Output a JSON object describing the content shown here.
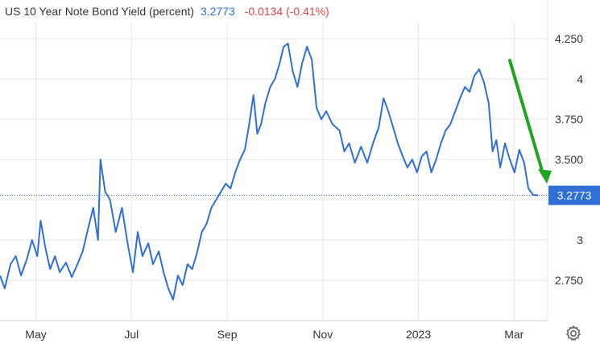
{
  "header": {
    "title": "US 10 Year Note Bond Yield (percent)",
    "value": "3.2773",
    "change": "-0.0134 (-0.41%)"
  },
  "colors": {
    "line": "#2f6fd6",
    "change_negative": "#e04545",
    "arrow": "#1fa51f",
    "grid": "#e6e6e6",
    "axis_text": "#333333"
  },
  "settings_icon": "gear-icon",
  "chart_data": {
    "type": "line",
    "title": "US 10 Year Note Bond Yield (percent)",
    "xlabel": "",
    "ylabel": "",
    "ylim": [
      2.5,
      4.35
    ],
    "x_ticks": [
      {
        "label": "May",
        "x": 0.75
      },
      {
        "label": "Jul",
        "x": 2.75
      },
      {
        "label": "Sep",
        "x": 4.75
      },
      {
        "label": "Nov",
        "x": 6.75
      },
      {
        "label": "2023",
        "x": 8.75
      },
      {
        "label": "Mar",
        "x": 10.75
      }
    ],
    "y_ticks": [
      {
        "label": "2.750",
        "value": 2.75
      },
      {
        "label": "3",
        "value": 3.0
      },
      {
        "label": "3.250",
        "value": 3.25
      },
      {
        "label": "3.500",
        "value": 3.5
      },
      {
        "label": "3.750",
        "value": 3.75
      },
      {
        "label": "4",
        "value": 4.0
      },
      {
        "label": "4.250",
        "value": 4.25
      }
    ],
    "last_value_label": "3.2773",
    "last_value": 3.2773,
    "series": [
      {
        "name": "",
        "points": [
          [
            0.0,
            2.78
          ],
          [
            0.1,
            2.7
          ],
          [
            0.22,
            2.85
          ],
          [
            0.33,
            2.9
          ],
          [
            0.44,
            2.78
          ],
          [
            0.56,
            2.88
          ],
          [
            0.67,
            3.0
          ],
          [
            0.78,
            2.9
          ],
          [
            0.85,
            3.12
          ],
          [
            0.95,
            2.95
          ],
          [
            1.05,
            2.82
          ],
          [
            1.15,
            2.9
          ],
          [
            1.25,
            2.8
          ],
          [
            1.38,
            2.86
          ],
          [
            1.5,
            2.77
          ],
          [
            1.62,
            2.85
          ],
          [
            1.73,
            2.93
          ],
          [
            1.85,
            3.08
          ],
          [
            1.95,
            3.2
          ],
          [
            2.05,
            3.0
          ],
          [
            2.1,
            3.5
          ],
          [
            2.2,
            3.3
          ],
          [
            2.3,
            3.25
          ],
          [
            2.42,
            3.05
          ],
          [
            2.55,
            3.2
          ],
          [
            2.68,
            2.96
          ],
          [
            2.78,
            2.8
          ],
          [
            2.88,
            3.05
          ],
          [
            2.98,
            2.9
          ],
          [
            3.1,
            2.98
          ],
          [
            3.2,
            2.85
          ],
          [
            3.32,
            2.93
          ],
          [
            3.42,
            2.8
          ],
          [
            3.52,
            2.7
          ],
          [
            3.62,
            2.63
          ],
          [
            3.72,
            2.78
          ],
          [
            3.82,
            2.72
          ],
          [
            3.92,
            2.85
          ],
          [
            4.02,
            2.82
          ],
          [
            4.12,
            2.92
          ],
          [
            4.22,
            3.05
          ],
          [
            4.32,
            3.1
          ],
          [
            4.42,
            3.2
          ],
          [
            4.52,
            3.25
          ],
          [
            4.62,
            3.3
          ],
          [
            4.72,
            3.35
          ],
          [
            4.82,
            3.32
          ],
          [
            4.92,
            3.42
          ],
          [
            5.02,
            3.5
          ],
          [
            5.12,
            3.56
          ],
          [
            5.2,
            3.7
          ],
          [
            5.3,
            3.9
          ],
          [
            5.38,
            3.66
          ],
          [
            5.46,
            3.72
          ],
          [
            5.55,
            3.85
          ],
          [
            5.65,
            3.95
          ],
          [
            5.75,
            4.0
          ],
          [
            5.85,
            4.1
          ],
          [
            5.93,
            4.2
          ],
          [
            6.02,
            4.22
          ],
          [
            6.12,
            4.05
          ],
          [
            6.22,
            3.95
          ],
          [
            6.32,
            4.1
          ],
          [
            6.42,
            4.2
          ],
          [
            6.52,
            4.12
          ],
          [
            6.62,
            3.82
          ],
          [
            6.72,
            3.75
          ],
          [
            6.82,
            3.8
          ],
          [
            6.95,
            3.72
          ],
          [
            7.1,
            3.68
          ],
          [
            7.2,
            3.55
          ],
          [
            7.3,
            3.6
          ],
          [
            7.42,
            3.48
          ],
          [
            7.55,
            3.58
          ],
          [
            7.68,
            3.48
          ],
          [
            7.8,
            3.6
          ],
          [
            7.92,
            3.7
          ],
          [
            8.02,
            3.88
          ],
          [
            8.12,
            3.8
          ],
          [
            8.22,
            3.7
          ],
          [
            8.32,
            3.6
          ],
          [
            8.42,
            3.52
          ],
          [
            8.52,
            3.45
          ],
          [
            8.62,
            3.5
          ],
          [
            8.72,
            3.42
          ],
          [
            8.82,
            3.52
          ],
          [
            8.92,
            3.55
          ],
          [
            9.02,
            3.42
          ],
          [
            9.12,
            3.5
          ],
          [
            9.22,
            3.6
          ],
          [
            9.32,
            3.68
          ],
          [
            9.42,
            3.72
          ],
          [
            9.52,
            3.8
          ],
          [
            9.62,
            3.88
          ],
          [
            9.72,
            3.95
          ],
          [
            9.82,
            3.92
          ],
          [
            9.92,
            4.02
          ],
          [
            10.02,
            4.06
          ],
          [
            10.12,
            3.98
          ],
          [
            10.22,
            3.85
          ],
          [
            10.3,
            3.55
          ],
          [
            10.38,
            3.62
          ],
          [
            10.46,
            3.45
          ],
          [
            10.56,
            3.6
          ],
          [
            10.66,
            3.5
          ],
          [
            10.76,
            3.42
          ],
          [
            10.86,
            3.56
          ],
          [
            10.96,
            3.48
          ],
          [
            11.05,
            3.32
          ],
          [
            11.15,
            3.28
          ],
          [
            11.25,
            3.2773
          ]
        ]
      }
    ]
  }
}
